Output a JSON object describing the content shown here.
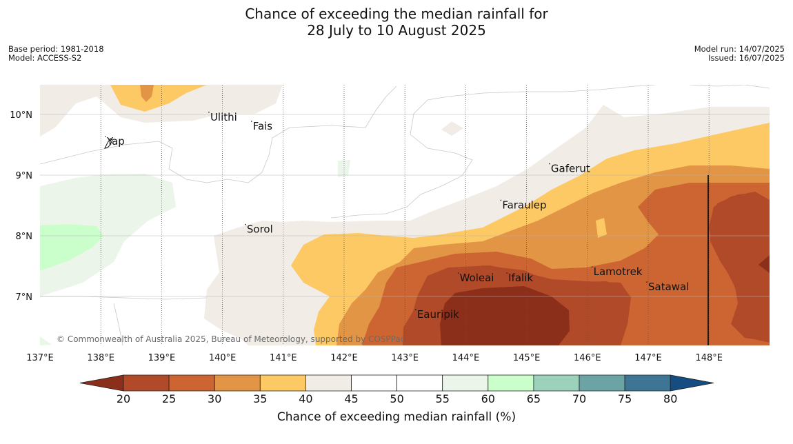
{
  "title": {
    "line1": "Chance of exceeding the median rainfall for",
    "line2": "28 July to 10 August 2025"
  },
  "meta_left": {
    "base_period": "Base period: 1981-2018",
    "model": "Model: ACCESS-S2"
  },
  "meta_right": {
    "model_run": "Model run: 14/07/2025",
    "issued": "Issued: 16/07/2025"
  },
  "map": {
    "lon_ticks": [
      "137°E",
      "138°E",
      "139°E",
      "140°E",
      "141°E",
      "142°E",
      "143°E",
      "144°E",
      "145°E",
      "146°E",
      "147°E",
      "148°E"
    ],
    "lat_ticks": [
      "10°N",
      "9°N",
      "8°N",
      "7°N"
    ],
    "places": [
      {
        "name": "Ulithi",
        "lon": 139.8,
        "lat": 9.9
      },
      {
        "name": "Fais",
        "lon": 140.5,
        "lat": 9.75
      },
      {
        "name": "Yap",
        "lon": 138.1,
        "lat": 9.5
      },
      {
        "name": "Gaferut",
        "lon": 145.4,
        "lat": 9.05
      },
      {
        "name": "Faraulep",
        "lon": 144.6,
        "lat": 8.45
      },
      {
        "name": "Sorol",
        "lon": 140.4,
        "lat": 8.05
      },
      {
        "name": "Lamotrek",
        "lon": 146.1,
        "lat": 7.35
      },
      {
        "name": "Woleai",
        "lon": 143.9,
        "lat": 7.25
      },
      {
        "name": "Ifalik",
        "lon": 144.7,
        "lat": 7.25
      },
      {
        "name": "Satawal",
        "lon": 147.0,
        "lat": 7.1
      },
      {
        "name": "Eauripik",
        "lon": 143.2,
        "lat": 6.65
      }
    ],
    "copyright": "© Commonwealth of Australia 2025, Bureau of Meteorology, supported by COSPPac"
  },
  "colorbar": {
    "title": "Chance of exceeding median rainfall (%)",
    "ticks": [
      "20",
      "25",
      "30",
      "35",
      "40",
      "45",
      "50",
      "55",
      "60",
      "65",
      "70",
      "75",
      "80"
    ],
    "colors": {
      "below_20": "#8c2f1a",
      "20_25": "#b04a28",
      "25_30": "#cc6532",
      "30_35": "#e29544",
      "35_40": "#fdc964",
      "40_45": "#f1ede6",
      "45_50": "#ffffff",
      "50_55": "#ffffff",
      "55_60": "#ebf5ea",
      "60_65": "#caffcb",
      "65_70": "#9cd2bc",
      "70_75": "#6ca3a4",
      "75_80": "#3e7595",
      "above_80": "#154d82"
    }
  }
}
